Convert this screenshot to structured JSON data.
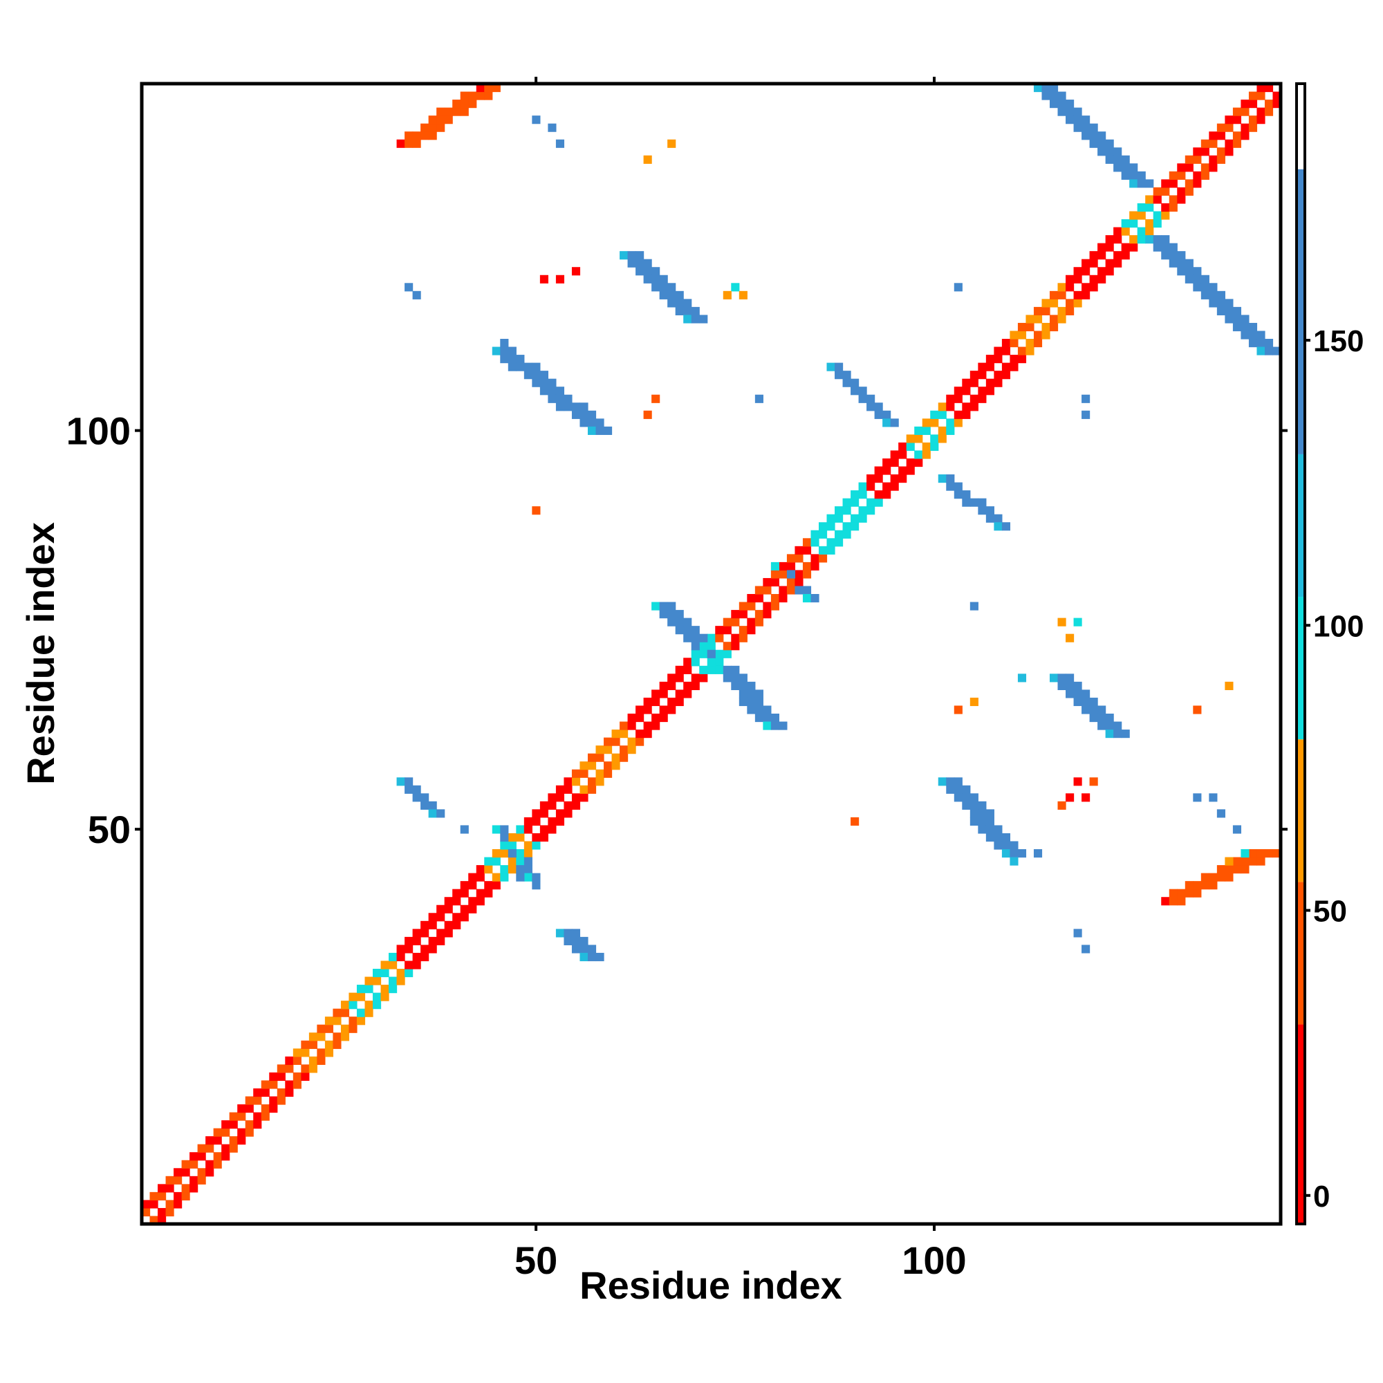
{
  "chart_data": {
    "type": "heatmap",
    "title": "",
    "xlabel": "Residue index",
    "ylabel": "Residue index",
    "xlim": [
      1,
      143
    ],
    "ylim": [
      1,
      143
    ],
    "x_ticks": [
      50,
      100
    ],
    "y_ticks": [
      50,
      100
    ],
    "colorbar": {
      "ticks": [
        0,
        50,
        100,
        150
      ],
      "range": [
        -5,
        195
      ],
      "bands": [
        {
          "from": -5,
          "to": 30,
          "color": "#ff0000"
        },
        {
          "from": 30,
          "to": 55,
          "color": "#ff5500"
        },
        {
          "from": 55,
          "to": 80,
          "color": "#ff9900"
        },
        {
          "from": 80,
          "to": 105,
          "color": "#11dddd"
        },
        {
          "from": 105,
          "to": 130,
          "color": "#22bbdd"
        },
        {
          "from": 130,
          "to": 180,
          "color": "#4488cc"
        },
        {
          "from": 180,
          "to": 195,
          "color": "#ffffff"
        }
      ]
    },
    "diagonal": {
      "from": 1,
      "to": 143,
      "width": 2
    },
    "diagonal_color_ranges": [
      {
        "from": 1,
        "to": 20,
        "value": 35
      },
      {
        "from": 20,
        "to": 27,
        "value": 60
      },
      {
        "from": 27,
        "to": 33,
        "value": 90
      },
      {
        "from": 33,
        "to": 44,
        "value": 25
      },
      {
        "from": 44,
        "to": 49,
        "value": 95
      },
      {
        "from": 49,
        "to": 55,
        "value": 10
      },
      {
        "from": 55,
        "to": 62,
        "value": 70
      },
      {
        "from": 62,
        "to": 70,
        "value": 25
      },
      {
        "from": 70,
        "to": 73,
        "value": 100
      },
      {
        "from": 73,
        "to": 85,
        "value": 45
      },
      {
        "from": 85,
        "to": 92,
        "value": 100
      },
      {
        "from": 92,
        "to": 97,
        "value": 25
      },
      {
        "from": 97,
        "to": 102,
        "value": 95
      },
      {
        "from": 102,
        "to": 110,
        "value": 10
      },
      {
        "from": 110,
        "to": 117,
        "value": 60
      },
      {
        "from": 117,
        "to": 124,
        "value": 20
      },
      {
        "from": 124,
        "to": 128,
        "value": 95
      },
      {
        "from": 128,
        "to": 143,
        "value": 30
      }
    ],
    "segments": [
      {
        "x0": 33,
        "y0": 136,
        "x1": 43,
        "y1": 143,
        "width": 3,
        "value": 40
      },
      {
        "x0": 113,
        "y0": 143,
        "x1": 125,
        "y1": 131,
        "width": 3,
        "value": 150
      },
      {
        "x0": 127,
        "y0": 124,
        "x1": 141,
        "y1": 110,
        "width": 3,
        "value": 155
      },
      {
        "x0": 61,
        "y0": 122,
        "x1": 69,
        "y1": 114,
        "width": 3,
        "value": 150
      },
      {
        "x0": 45,
        "y0": 110,
        "x1": 57,
        "y1": 100,
        "width": 3,
        "value": 150
      },
      {
        "x0": 87,
        "y0": 108,
        "x1": 94,
        "y1": 101,
        "width": 2,
        "value": 145
      },
      {
        "x0": 101,
        "y0": 94,
        "x1": 108,
        "y1": 88,
        "width": 2,
        "value": 150
      },
      {
        "x0": 65,
        "y0": 78,
        "x1": 71,
        "y1": 72,
        "width": 3,
        "value": 140
      },
      {
        "x0": 73,
        "y0": 70,
        "x1": 79,
        "y1": 63,
        "width": 3,
        "value": 140
      },
      {
        "x0": 115,
        "y0": 69,
        "x1": 122,
        "y1": 62,
        "width": 3,
        "value": 150
      },
      {
        "x0": 101,
        "y0": 56,
        "x1": 109,
        "y1": 47,
        "width": 3,
        "value": 155
      },
      {
        "x0": 33,
        "y0": 56,
        "x1": 37,
        "y1": 52,
        "width": 2,
        "value": 155
      },
      {
        "x0": 53,
        "y0": 37,
        "x1": 56,
        "y1": 34,
        "width": 3,
        "value": 150
      },
      {
        "x0": 129,
        "y0": 41,
        "x1": 141,
        "y1": 47,
        "width": 3,
        "value": 35
      },
      {
        "x0": 80,
        "y0": 83,
        "x1": 84,
        "y1": 79,
        "width": 2,
        "value": 130
      },
      {
        "x0": 45,
        "y0": 50,
        "x1": 49,
        "y1": 44,
        "width": 2,
        "value": 140
      }
    ],
    "cells": [
      [
        50,
        139,
        150
      ],
      [
        52,
        138,
        150
      ],
      [
        53,
        136,
        140
      ],
      [
        67,
        136,
        70
      ],
      [
        64,
        134,
        60
      ],
      [
        34,
        118,
        140
      ],
      [
        35,
        117,
        150
      ],
      [
        51,
        119,
        25
      ],
      [
        53,
        119,
        20
      ],
      [
        55,
        120,
        25
      ],
      [
        75,
        118,
        90
      ],
      [
        74,
        117,
        65
      ],
      [
        76,
        117,
        70
      ],
      [
        103,
        118,
        140
      ],
      [
        46,
        111,
        150
      ],
      [
        65,
        104,
        40
      ],
      [
        64,
        102,
        35
      ],
      [
        78,
        104,
        130
      ],
      [
        119,
        104,
        150
      ],
      [
        119,
        102,
        140
      ],
      [
        50,
        90,
        40
      ],
      [
        105,
        78,
        130
      ],
      [
        116,
        76,
        60
      ],
      [
        117,
        74,
        70
      ],
      [
        118,
        76,
        95
      ],
      [
        111,
        69,
        110
      ],
      [
        137,
        68,
        60
      ],
      [
        105,
        66,
        55
      ],
      [
        103,
        65,
        40
      ],
      [
        133,
        65,
        45
      ],
      [
        118,
        56,
        20
      ],
      [
        120,
        56,
        30
      ],
      [
        117,
        54,
        20
      ],
      [
        119,
        54,
        10
      ],
      [
        116,
        53,
        40
      ],
      [
        90,
        51,
        40
      ],
      [
        133,
        54,
        150
      ],
      [
        135,
        54,
        140
      ],
      [
        136,
        52,
        150
      ],
      [
        138,
        50,
        140
      ],
      [
        110,
        46,
        120
      ],
      [
        113,
        47,
        150
      ],
      [
        118,
        37,
        130
      ],
      [
        119,
        35,
        150
      ],
      [
        41,
        50,
        150
      ],
      [
        48,
        44,
        150
      ],
      [
        50,
        43,
        150
      ],
      [
        137,
        46,
        60
      ],
      [
        139,
        47,
        95
      ]
    ]
  }
}
